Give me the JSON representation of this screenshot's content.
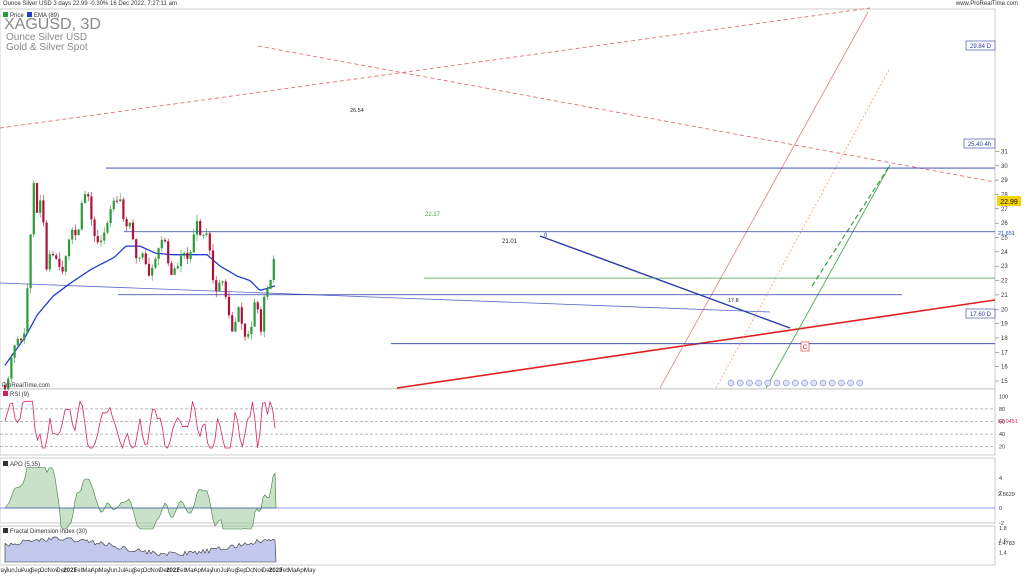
{
  "header": {
    "title": "Ounce Silver USD 3 days 22.99 -0.30% 16 Dec 2022, 7:27:11 am",
    "site": "www.ProRealTime.com"
  },
  "watermark": {
    "symbol": "XAGUSD, 3D",
    "name": "Ounce Silver USD",
    "group": "Gold & Silver Spot"
  },
  "legend": {
    "price": "Price",
    "ema": "EMA (89)"
  },
  "branding": "ProRealTime.com",
  "price_labels": {
    "last": "22.99",
    "ema_last": "21.651",
    "resistance_1": "29.84 D",
    "resistance_2": "25.40 4h",
    "support": "17.60 D"
  },
  "annotations": {
    "level_22": "22.17",
    "level_21": "21.01",
    "high_mark": "26.54",
    "low_mark": "17.8",
    "wave_label": "C",
    "point_marker": "0"
  },
  "panels": {
    "rsi": {
      "label": "RSI (9)",
      "value": "62.0451",
      "ticks": [
        "100",
        "80",
        "60",
        "40",
        "20"
      ]
    },
    "apo": {
      "label": "APO (5,35)",
      "value": "2.8629",
      "ticks": [
        "4",
        "2",
        "0",
        "-2"
      ]
    },
    "fdi": {
      "label": "Fractal Dimension Index (30)",
      "value": "1.4783",
      "ticks": [
        "1.8",
        "1.6",
        "1.4"
      ]
    }
  },
  "colors": {
    "bull": "#2e9b3a",
    "bear": "#b0103a",
    "ema": "#1f3fcf",
    "trend_red": "#e03030",
    "hline_blue": "#2a3aa8",
    "level_green": "#3aa043",
    "rsi_line": "#d8206a",
    "apo_fill": "#9cc89a",
    "fdi_fill": "#aab0e6"
  },
  "chart_data": {
    "type": "candlestick",
    "symbol": "XAGUSD",
    "timeframe": "3D",
    "y_ticks": [
      "31",
      "30",
      "29",
      "28",
      "27",
      "26",
      "25",
      "24",
      "23",
      "22",
      "21",
      "20",
      "19",
      "18",
      "17",
      "16",
      "15"
    ],
    "x_labels": [
      "May",
      "Jun",
      "Jul",
      "Aug",
      "Sep",
      "Oct",
      "Nov",
      "Dec",
      "2021",
      "Feb",
      "Mar",
      "Apr",
      "May",
      "Jun",
      "Jul",
      "Aug",
      "Sep",
      "Oct",
      "Nov",
      "Dec",
      "2022",
      "Feb",
      "Mar",
      "Apr",
      "May",
      "Jun",
      "Jul",
      "Aug",
      "Sep",
      "Oct",
      "Nov",
      "Dec",
      "2023",
      "Feb",
      "Mar",
      "Apr",
      "May"
    ],
    "ylim": [
      14.4,
      31.4
    ],
    "grid": false,
    "price_path": [
      [
        "2020-04-28",
        14.7
      ],
      [
        "2020-05-15",
        15.6
      ],
      [
        "2020-05-30",
        17.6
      ],
      [
        "2020-06-20",
        17.8
      ],
      [
        "2020-07-05",
        18.5
      ],
      [
        "2020-07-22",
        22.6
      ],
      [
        "2020-08-06",
        29.2
      ],
      [
        "2020-08-20",
        26.8
      ],
      [
        "2020-09-06",
        27.6
      ],
      [
        "2020-09-22",
        22.8
      ],
      [
        "2020-10-08",
        24.3
      ],
      [
        "2020-10-28",
        23.5
      ],
      [
        "2020-11-20",
        22.8
      ],
      [
        "2020-12-05",
        24.0
      ],
      [
        "2020-12-22",
        25.6
      ],
      [
        "2021-01-10",
        25.2
      ],
      [
        "2021-02-01",
        28.2
      ],
      [
        "2021-02-20",
        27.5
      ],
      [
        "2021-03-10",
        25.2
      ],
      [
        "2021-03-31",
        24.4
      ],
      [
        "2021-04-20",
        25.6
      ],
      [
        "2021-05-18",
        27.8
      ],
      [
        "2021-06-10",
        27.8
      ],
      [
        "2021-06-25",
        26.0
      ],
      [
        "2021-07-15",
        25.8
      ],
      [
        "2021-08-09",
        23.4
      ],
      [
        "2021-08-30",
        24.0
      ],
      [
        "2021-09-25",
        22.2
      ],
      [
        "2021-10-20",
        24.2
      ],
      [
        "2021-11-15",
        25.0
      ],
      [
        "2021-12-05",
        22.4
      ],
      [
        "2021-12-25",
        22.8
      ],
      [
        "2022-01-20",
        23.8
      ],
      [
        "2022-02-15",
        23.6
      ],
      [
        "2022-03-08",
        26.2
      ],
      [
        "2022-03-28",
        25.0
      ],
      [
        "2022-04-18",
        25.6
      ],
      [
        "2022-05-12",
        21.0
      ],
      [
        "2022-06-05",
        22.2
      ],
      [
        "2022-06-30",
        20.0
      ],
      [
        "2022-07-15",
        18.2
      ],
      [
        "2022-08-05",
        20.0
      ],
      [
        "2022-08-30",
        17.9
      ],
      [
        "2022-09-25",
        19.1
      ],
      [
        "2022-10-05",
        21.0
      ],
      [
        "2022-10-22",
        18.4
      ],
      [
        "2022-11-05",
        20.8
      ],
      [
        "2022-11-25",
        21.5
      ],
      [
        "2022-12-07",
        23.6
      ],
      [
        "2022-12-16",
        22.99
      ]
    ],
    "ema_89_path": [
      [
        "2020-04-28",
        16.1
      ],
      [
        "2020-07-10",
        18.1
      ],
      [
        "2020-08-20",
        19.6
      ],
      [
        "2020-10-15",
        20.9
      ],
      [
        "2020-12-15",
        21.8
      ],
      [
        "2021-03-01",
        22.8
      ],
      [
        "2021-05-20",
        23.6
      ],
      [
        "2021-07-01",
        24.4
      ],
      [
        "2021-08-20",
        24.4
      ],
      [
        "2021-10-15",
        23.9
      ],
      [
        "2021-12-15",
        23.8
      ],
      [
        "2022-02-15",
        23.8
      ],
      [
        "2022-04-15",
        23.8
      ],
      [
        "2022-06-01",
        23.0
      ],
      [
        "2022-08-01",
        22.3
      ],
      [
        "2022-09-15",
        22.0
      ],
      [
        "2022-10-20",
        21.3
      ],
      [
        "2022-12-16",
        21.651
      ]
    ],
    "horizontal_levels": [
      29.84,
      25.4,
      22.17,
      21.01,
      17.6
    ],
    "rsi_9": {
      "last": 62.0451,
      "ylim": [
        0,
        100
      ],
      "levels": [
        80,
        20
      ]
    },
    "apo_5_35": {
      "last": 2.8629,
      "ylim": [
        -3,
        5
      ]
    },
    "fractal_dimension_30": {
      "last": 1.4783,
      "ylim": [
        1.2,
        1.9
      ]
    }
  }
}
